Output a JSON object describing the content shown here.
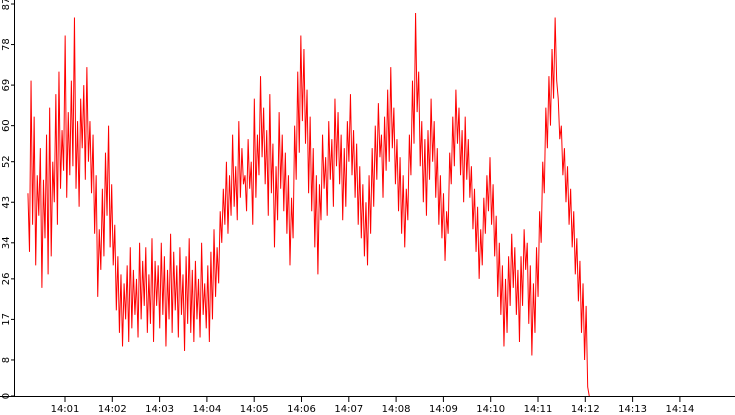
{
  "chart_data": {
    "type": "line",
    "title": "",
    "xlabel": "",
    "ylabel": "",
    "x_tick_labels": [
      "14:01",
      "14:02",
      "14:03",
      "14:04",
      "14:05",
      "14:06",
      "14:07",
      "14:08",
      "14:09",
      "14:10",
      "14:11",
      "14:12",
      "14:13",
      "14:14"
    ],
    "y_tick_labels": [
      "0",
      "8",
      "17",
      "26",
      "34",
      "43",
      "52",
      "60",
      "69",
      "78",
      "87"
    ],
    "ylim": [
      0,
      87
    ],
    "xlim": [
      "14:00:10",
      "14:14:55"
    ],
    "grid": false,
    "legend": "none",
    "series": [
      {
        "color": "#ff0000",
        "x_start": "14:00:13",
        "x_end": "14:12:05",
        "values": [
          45,
          32,
          70,
          38,
          62,
          29,
          49,
          40,
          55,
          24,
          48,
          35,
          58,
          27,
          64,
          31,
          52,
          43,
          67,
          38,
          72,
          46,
          59,
          50,
          80,
          44,
          63,
          49,
          70,
          51,
          84,
          46,
          61,
          42,
          66,
          55,
          69,
          48,
          73,
          52,
          61,
          45,
          58,
          36,
          49,
          22,
          37,
          28,
          46,
          31,
          54,
          40,
          60,
          33,
          47,
          29,
          38,
          19,
          31,
          14,
          27,
          11,
          25,
          17,
          29,
          12,
          33,
          15,
          28,
          18,
          26,
          13,
          34,
          17,
          30,
          20,
          33,
          14,
          27,
          16,
          35,
          12,
          30,
          20,
          29,
          15,
          34,
          18,
          31,
          11,
          28,
          17,
          36,
          14,
          32,
          19,
          29,
          13,
          33,
          18,
          27,
          10,
          31,
          16,
          35,
          14,
          28,
          12,
          30,
          17,
          26,
          13,
          34,
          18,
          25,
          15,
          29,
          12,
          32,
          17,
          37,
          22,
          33,
          25,
          41,
          34,
          46,
          38,
          52,
          36,
          49,
          40,
          58,
          42,
          51,
          39,
          61,
          44,
          55,
          47,
          49,
          41,
          57,
          46,
          52,
          38,
          66,
          44,
          58,
          49,
          71,
          53,
          64,
          47,
          59,
          40,
          67,
          45,
          56,
          33,
          51,
          39,
          63,
          46,
          58,
          41,
          54,
          36,
          49,
          29,
          44,
          35,
          60,
          48,
          72,
          54,
          80,
          61,
          77,
          56,
          68,
          45,
          62,
          41,
          55,
          33,
          49,
          27,
          47,
          39,
          58,
          46,
          53,
          40,
          61,
          48,
          57,
          42,
          66,
          51,
          63,
          47,
          58,
          39,
          55,
          42,
          61,
          52,
          67,
          49,
          59,
          44,
          56,
          38,
          51,
          35,
          47,
          31,
          43,
          29,
          49,
          36,
          55,
          42,
          60,
          48,
          65,
          53,
          58,
          44,
          62,
          50,
          68,
          52,
          73,
          55,
          64,
          47,
          57,
          41,
          53,
          36,
          49,
          33,
          46,
          39,
          58,
          49,
          70,
          56,
          85,
          63,
          72,
          51,
          61,
          43,
          57,
          40,
          59,
          48,
          66,
          52,
          61,
          44,
          55,
          38,
          49,
          35,
          45,
          30,
          41,
          36,
          54,
          47,
          62,
          51,
          68,
          56,
          64,
          49,
          59,
          43,
          62,
          48,
          57,
          44,
          51,
          37,
          46,
          32,
          42,
          26,
          37,
          29,
          44,
          36,
          49,
          41,
          53,
          38,
          47,
          31,
          40,
          22,
          34,
          18,
          29,
          11,
          26,
          14,
          31,
          20,
          36,
          24,
          33,
          18,
          28,
          12,
          31,
          20,
          37,
          28,
          34,
          16,
          29,
          9,
          25,
          14,
          33,
          22,
          41,
          34,
          52,
          45,
          64,
          55,
          71,
          60,
          77,
          66,
          84,
          70,
          66,
          57,
          60,
          49,
          55,
          43,
          51,
          38,
          46,
          33,
          41,
          27,
          35,
          21,
          30,
          14,
          25,
          8,
          20,
          2,
          0
        ]
      }
    ]
  }
}
